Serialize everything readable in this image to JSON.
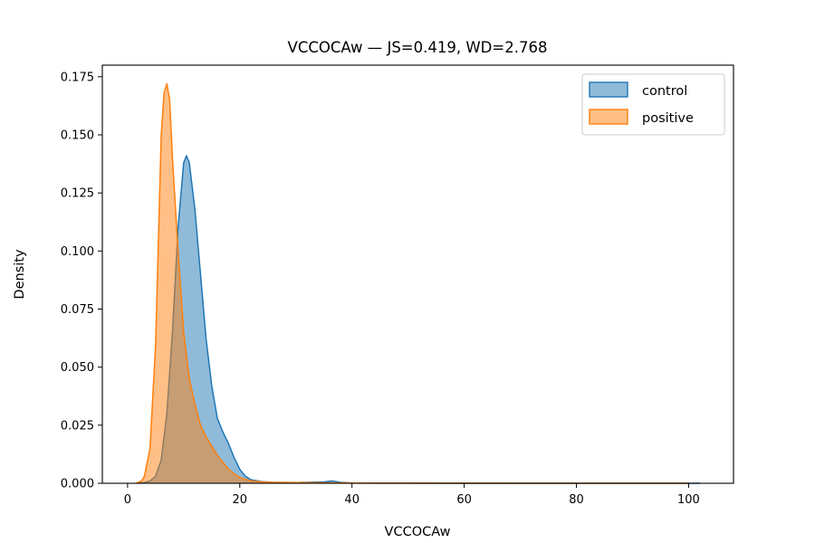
{
  "chart_data": {
    "type": "area",
    "title": "VCCOCAw — JS=0.419, WD=2.768",
    "xlabel": "VCCOCAw",
    "ylabel": "Density",
    "xlim": [
      -4.5,
      108
    ],
    "ylim": [
      0,
      0.18
    ],
    "x_ticks": [
      0,
      20,
      40,
      60,
      80,
      100
    ],
    "y_ticks": [
      0.0,
      0.025,
      0.05,
      0.075,
      0.1,
      0.125,
      0.15,
      0.175
    ],
    "x_tick_labels": [
      "0",
      "20",
      "40",
      "60",
      "80",
      "100"
    ],
    "y_tick_labels": [
      "0.000",
      "0.025",
      "0.050",
      "0.075",
      "0.100",
      "0.125",
      "0.150",
      "0.175"
    ],
    "grid": false,
    "legend": {
      "position": "top-right",
      "entries": [
        "control",
        "positive"
      ]
    },
    "series": [
      {
        "name": "control",
        "line_color": "#1f77b4",
        "fill_color": "#1f77b4",
        "fill_opacity": 0.5,
        "x": [
          2,
          3,
          4,
          5,
          6,
          7,
          8,
          9,
          10,
          10.5,
          11,
          12,
          13,
          14,
          15,
          16,
          17,
          18,
          19,
          20,
          21,
          22,
          24,
          26,
          30,
          35,
          36.5,
          38,
          40,
          45,
          50,
          60,
          70,
          80,
          90,
          100,
          102
        ],
        "y": [
          0,
          0.0003,
          0.001,
          0.003,
          0.01,
          0.03,
          0.065,
          0.11,
          0.138,
          0.141,
          0.138,
          0.118,
          0.09,
          0.062,
          0.042,
          0.028,
          0.022,
          0.017,
          0.011,
          0.006,
          0.003,
          0.0015,
          0.0007,
          0.0004,
          0.0003,
          0.0006,
          0.001,
          0.0004,
          0.0001,
          5e-05,
          3e-05,
          2e-05,
          1e-05,
          1e-05,
          1e-05,
          1e-05,
          0
        ]
      },
      {
        "name": "positive",
        "line_color": "#ff7f0e",
        "fill_color": "#ff7f0e",
        "fill_opacity": 0.5,
        "x": [
          1.5,
          2.5,
          3,
          4,
          5,
          6,
          6.5,
          7,
          7.5,
          8,
          9,
          10,
          11,
          12,
          13,
          14,
          15,
          16,
          17,
          18,
          19,
          20,
          22,
          24,
          26,
          30,
          35,
          40,
          50,
          60,
          70,
          80,
          90,
          100
        ],
        "y": [
          0,
          0.001,
          0.003,
          0.015,
          0.06,
          0.15,
          0.168,
          0.172,
          0.165,
          0.14,
          0.1,
          0.065,
          0.045,
          0.034,
          0.025,
          0.02,
          0.016,
          0.012,
          0.009,
          0.006,
          0.004,
          0.0025,
          0.001,
          0.0006,
          0.0004,
          0.0003,
          0.0002,
          0.0001,
          5e-05,
          3e-05,
          2e-05,
          2e-05,
          1e-05,
          0
        ]
      }
    ]
  }
}
